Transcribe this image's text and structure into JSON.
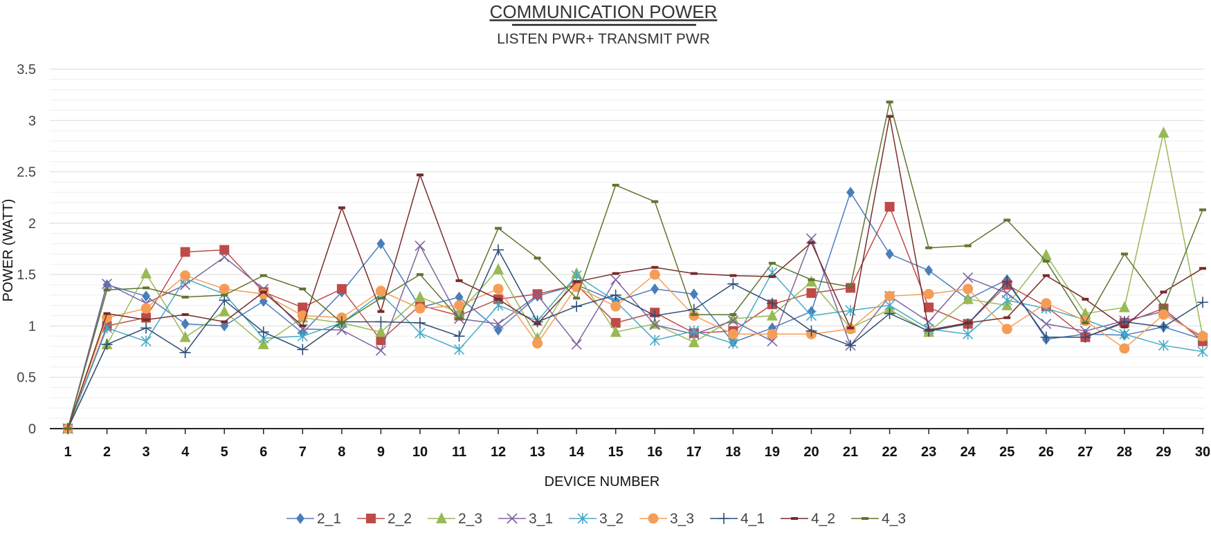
{
  "chart_data": {
    "type": "line",
    "title": "COMMUNICATION POWER",
    "subtitle": "LISTEN PWR+ TRANSMIT PWR",
    "xlabel": "DEVICE NUMBER",
    "ylabel": "POWER (WATT)",
    "ylim": [
      0,
      3.5
    ],
    "yticks": [
      "0",
      "0.5",
      "1",
      "1.5",
      "2",
      "2.5",
      "3",
      "3.5"
    ],
    "x": [
      1,
      2,
      3,
      4,
      5,
      6,
      7,
      8,
      9,
      10,
      11,
      12,
      13,
      14,
      15,
      16,
      17,
      18,
      19,
      20,
      21,
      22,
      23,
      24,
      25,
      26,
      27,
      28,
      29,
      30
    ],
    "xtick_labels": [
      "1",
      "2",
      "3",
      "4",
      "5",
      "6",
      "7",
      "8",
      "9",
      "10",
      "11",
      "12",
      "13",
      "14",
      "15",
      "16",
      "17",
      "18",
      "19",
      "20",
      "21",
      "22",
      "23",
      "24",
      "25",
      "26",
      "27",
      "28",
      "29",
      "30"
    ],
    "grid": true,
    "legend_position": "bottom",
    "series": [
      {
        "name": "2_1",
        "color": "#4a7ebb",
        "marker": "diamond",
        "values": [
          0,
          1.4,
          1.29,
          1.02,
          1.0,
          1.24,
          0.93,
          1.33,
          1.8,
          1.18,
          1.28,
          0.96,
          1.29,
          1.4,
          1.24,
          1.36,
          1.31,
          0.84,
          0.98,
          1.14,
          2.3,
          1.7,
          1.54,
          1.26,
          1.45,
          0.87,
          0.92,
          0.91,
          0.99,
          0.87
        ]
      },
      {
        "name": "2_2",
        "color": "#be4b48",
        "marker": "square",
        "values": [
          0,
          1.0,
          1.08,
          1.72,
          1.74,
          1.33,
          1.18,
          1.36,
          0.86,
          1.2,
          1.1,
          1.26,
          1.31,
          1.4,
          1.03,
          1.13,
          0.93,
          0.95,
          1.21,
          1.32,
          1.37,
          2.16,
          1.18,
          1.02,
          1.4,
          1.19,
          0.89,
          1.03,
          1.17,
          0.85
        ]
      },
      {
        "name": "2_3",
        "color": "#98b954",
        "marker": "triangle",
        "values": [
          0,
          0.82,
          1.51,
          0.89,
          1.14,
          0.82,
          1.08,
          1.03,
          0.94,
          1.28,
          1.13,
          1.55,
          0.88,
          1.51,
          0.94,
          1.02,
          0.84,
          1.07,
          1.1,
          1.43,
          0.98,
          1.16,
          0.94,
          1.26,
          1.2,
          1.69,
          1.12,
          1.18,
          2.88,
          0.9
        ]
      },
      {
        "name": "3_1",
        "color": "#7e649e",
        "marker": "x",
        "values": [
          0,
          1.41,
          1.22,
          1.4,
          1.67,
          1.36,
          0.97,
          0.96,
          0.76,
          1.78,
          1.07,
          1.02,
          1.3,
          0.82,
          1.45,
          1.01,
          0.92,
          1.05,
          0.85,
          1.85,
          0.81,
          1.29,
          1.04,
          1.47,
          1.32,
          1.02,
          0.95,
          1.05,
          1.14,
          0.88
        ]
      },
      {
        "name": "3_2",
        "color": "#46aac5",
        "marker": "asterisk",
        "values": [
          0,
          0.98,
          0.85,
          1.46,
          1.31,
          0.88,
          0.9,
          1.03,
          1.31,
          0.93,
          0.77,
          1.2,
          1.05,
          1.49,
          1.24,
          0.86,
          0.95,
          0.83,
          1.52,
          1.1,
          1.15,
          1.2,
          0.97,
          0.92,
          1.25,
          1.17,
          1.06,
          0.92,
          0.81,
          0.75
        ]
      },
      {
        "name": "3_3",
        "color": "#f59d56",
        "marker": "circle",
        "values": [
          0,
          1.08,
          1.17,
          1.49,
          1.36,
          1.31,
          1.1,
          1.08,
          1.34,
          1.17,
          1.2,
          1.36,
          0.83,
          1.38,
          1.19,
          1.5,
          1.1,
          0.92,
          0.92,
          0.92,
          0.97,
          1.29,
          1.31,
          1.36,
          0.97,
          1.22,
          1.05,
          0.78,
          1.11,
          0.9
        ]
      },
      {
        "name": "4_1",
        "color": "#2c4d75",
        "marker": "plus",
        "values": [
          0,
          0.82,
          0.98,
          0.74,
          1.25,
          0.94,
          0.77,
          1.04,
          1.04,
          1.03,
          0.9,
          1.74,
          1.04,
          1.19,
          1.3,
          1.1,
          1.16,
          1.41,
          1.22,
          0.95,
          0.81,
          1.12,
          0.95,
          1.02,
          1.43,
          0.89,
          0.89,
          1.04,
          0.99,
          1.23
        ]
      },
      {
        "name": "4_2",
        "color": "#772c2a",
        "marker": "dash",
        "values": [
          0,
          1.12,
          1.06,
          1.11,
          1.04,
          1.33,
          1.0,
          2.15,
          1.14,
          2.47,
          1.44,
          1.26,
          1.02,
          1.43,
          1.51,
          1.57,
          1.51,
          1.49,
          1.48,
          1.81,
          0.98,
          3.04,
          0.96,
          1.03,
          1.08,
          1.49,
          1.26,
          0.99,
          1.33,
          1.56
        ]
      },
      {
        "name": "4_3",
        "color": "#5f7530",
        "marker": "dash",
        "values": [
          0,
          1.35,
          1.37,
          1.28,
          1.3,
          1.49,
          1.36,
          1.03,
          1.27,
          1.5,
          1.07,
          1.95,
          1.66,
          1.27,
          2.37,
          2.21,
          1.11,
          1.11,
          1.61,
          1.45,
          1.38,
          3.18,
          1.76,
          1.78,
          2.03,
          1.63,
          1.03,
          1.7,
          1.18,
          2.13
        ]
      }
    ]
  }
}
